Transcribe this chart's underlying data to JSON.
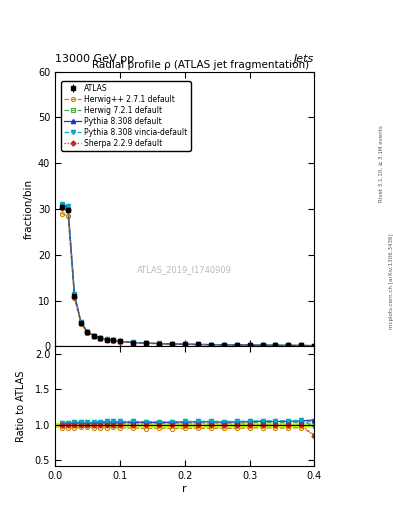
{
  "title": "Radial profile ρ (ATLAS jet fragmentation)",
  "top_left_label": "13000 GeV pp",
  "top_right_label": "Jets",
  "xlabel": "r",
  "ylabel_main": "fraction/bin",
  "ylabel_ratio": "Ratio to ATLAS",
  "right_label1": "Rivet 3.1.10, ≥ 3.1M events",
  "right_label2": "mcplots.cern.ch [arXiv:1306.3436]",
  "watermark": "ATLAS_2019_I1740909",
  "ylim_main": [
    0,
    60
  ],
  "ylim_ratio": [
    0.42,
    2.1
  ],
  "yticks_main": [
    0,
    10,
    20,
    30,
    40,
    50,
    60
  ],
  "yticks_ratio": [
    0.5,
    1.0,
    1.5,
    2.0
  ],
  "r_values": [
    0.01,
    0.02,
    0.03,
    0.04,
    0.05,
    0.06,
    0.07,
    0.08,
    0.09,
    0.1,
    0.12,
    0.14,
    0.16,
    0.18,
    0.2,
    0.22,
    0.24,
    0.26,
    0.28,
    0.3,
    0.32,
    0.34,
    0.36,
    0.38,
    0.4
  ],
  "atlas_y": [
    30.5,
    29.8,
    11.0,
    5.2,
    3.1,
    2.3,
    1.8,
    1.5,
    1.3,
    1.1,
    0.85,
    0.72,
    0.62,
    0.54,
    0.48,
    0.43,
    0.39,
    0.36,
    0.33,
    0.3,
    0.27,
    0.25,
    0.23,
    0.21,
    0.19
  ],
  "atlas_err": [
    0.5,
    0.5,
    0.3,
    0.15,
    0.1,
    0.08,
    0.06,
    0.05,
    0.04,
    0.04,
    0.03,
    0.025,
    0.02,
    0.018,
    0.016,
    0.014,
    0.013,
    0.012,
    0.011,
    0.01,
    0.009,
    0.008,
    0.008,
    0.007,
    0.007
  ],
  "herwig_pp_y": [
    29.0,
    28.5,
    10.5,
    5.0,
    3.0,
    2.2,
    1.72,
    1.44,
    1.25,
    1.05,
    0.81,
    0.68,
    0.59,
    0.51,
    0.455,
    0.408,
    0.371,
    0.341,
    0.313,
    0.286,
    0.258,
    0.238,
    0.219,
    0.201,
    0.163
  ],
  "herwig72_y": [
    30.8,
    30.1,
    11.2,
    5.3,
    3.15,
    2.33,
    1.84,
    1.53,
    1.33,
    1.12,
    0.87,
    0.735,
    0.632,
    0.551,
    0.492,
    0.441,
    0.4,
    0.368,
    0.338,
    0.308,
    0.279,
    0.257,
    0.237,
    0.217,
    0.199
  ],
  "pythia_y": [
    31.0,
    30.4,
    11.3,
    5.35,
    3.18,
    2.36,
    1.86,
    1.56,
    1.35,
    1.14,
    0.88,
    0.744,
    0.64,
    0.558,
    0.498,
    0.447,
    0.406,
    0.373,
    0.343,
    0.313,
    0.283,
    0.261,
    0.241,
    0.221,
    0.203
  ],
  "pythia_vincia_y": [
    31.2,
    30.6,
    11.4,
    5.4,
    3.2,
    2.38,
    1.88,
    1.57,
    1.36,
    1.15,
    0.89,
    0.75,
    0.645,
    0.562,
    0.502,
    0.45,
    0.409,
    0.376,
    0.346,
    0.315,
    0.285,
    0.263,
    0.243,
    0.223,
    0.185
  ],
  "sherpa_y": [
    30.3,
    29.7,
    10.9,
    5.18,
    3.09,
    2.29,
    1.8,
    1.5,
    1.3,
    1.09,
    0.845,
    0.714,
    0.614,
    0.534,
    0.476,
    0.426,
    0.387,
    0.356,
    0.327,
    0.298,
    0.269,
    0.248,
    0.228,
    0.209,
    0.16
  ],
  "herwig_pp_ratio": [
    0.951,
    0.957,
    0.955,
    0.962,
    0.968,
    0.957,
    0.956,
    0.96,
    0.962,
    0.955,
    0.953,
    0.944,
    0.952,
    0.944,
    0.948,
    0.949,
    0.951,
    0.947,
    0.948,
    0.953,
    0.956,
    0.952,
    0.952,
    0.957,
    0.86
  ],
  "herwig72_ratio": [
    1.01,
    1.01,
    1.018,
    1.019,
    1.016,
    1.013,
    1.022,
    1.02,
    1.023,
    1.018,
    1.024,
    1.021,
    1.019,
    1.02,
    1.025,
    1.025,
    1.026,
    1.022,
    1.024,
    1.027,
    1.033,
    1.028,
    1.03,
    1.033,
    1.047
  ],
  "pythia_ratio": [
    1.016,
    1.02,
    1.027,
    1.029,
    1.026,
    1.026,
    1.033,
    1.04,
    1.038,
    1.036,
    1.035,
    1.033,
    1.032,
    1.033,
    1.038,
    1.04,
    1.041,
    1.036,
    1.039,
    1.043,
    1.048,
    1.044,
    1.048,
    1.052,
    1.068
  ],
  "pythia_vincia_ratio": [
    1.023,
    1.027,
    1.036,
    1.038,
    1.032,
    1.035,
    1.044,
    1.047,
    1.046,
    1.045,
    1.047,
    1.042,
    1.04,
    1.041,
    1.046,
    1.047,
    1.049,
    1.044,
    1.048,
    1.05,
    1.056,
    1.052,
    1.057,
    1.062,
    0.974
  ],
  "sherpa_ratio": [
    0.993,
    0.997,
    0.991,
    0.996,
    0.997,
    0.996,
    1.0,
    1.0,
    1.0,
    0.991,
    0.994,
    0.992,
    0.99,
    0.989,
    0.992,
    0.991,
    0.992,
    0.989,
    0.991,
    0.993,
    0.996,
    0.992,
    0.991,
    0.995,
    0.842
  ],
  "atlas_band_lo": 0.97,
  "atlas_band_hi": 1.03,
  "color_herwig_pp": "#cc8800",
  "color_herwig72": "#44aa44",
  "color_pythia": "#2233cc",
  "color_pythia_vincia": "#00aacc",
  "color_sherpa": "#cc2222",
  "color_atlas_band": "#ccff00",
  "background_color": "#ffffff"
}
